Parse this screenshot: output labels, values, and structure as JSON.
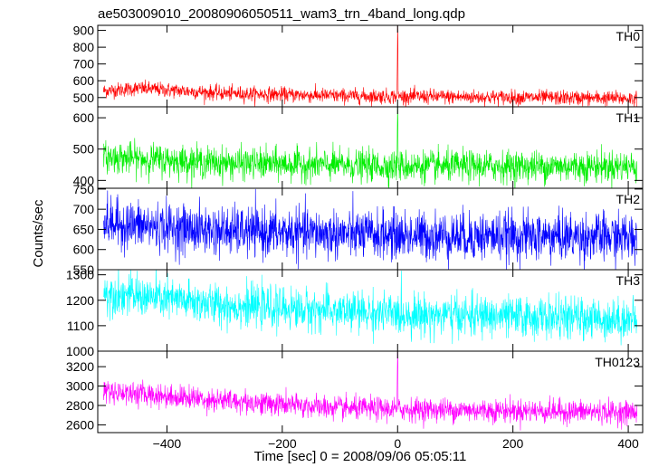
{
  "chart_data": {
    "type": "line",
    "title": "ae503009010_20080906050511_wam3_trn_4band_long.qdp",
    "xlabel": "Time [sec] 0 = 2008/09/06 05:05:11",
    "ylabel": "Counts/sec",
    "xlim": [
      -520,
      425
    ],
    "xticks": [
      -400,
      -200,
      0,
      200,
      400
    ],
    "panels": [
      {
        "name": "TH0",
        "color": "#ff0000",
        "ylim": [
          445,
          930
        ],
        "yticks": [
          500,
          600,
          700,
          800,
          900
        ],
        "trend": [
          [
            -510,
            540
          ],
          [
            -450,
            555
          ],
          [
            -300,
            525
          ],
          [
            -100,
            510
          ],
          [
            400,
            495
          ]
        ],
        "noise": 22,
        "spike": {
          "x": 0,
          "values": [
            700,
            930,
            850
          ]
        }
      },
      {
        "name": "TH1",
        "color": "#00ee00",
        "ylim": [
          375,
          635
        ],
        "yticks": [
          400,
          500,
          600
        ],
        "trend": [
          [
            -510,
            475
          ],
          [
            -300,
            455
          ],
          [
            0,
            445
          ],
          [
            400,
            445
          ]
        ],
        "noise": 25,
        "spike": {
          "x": 0,
          "values": [
            560,
            635,
            590
          ]
        }
      },
      {
        "name": "TH2",
        "color": "#0000ff",
        "ylim": [
          550,
          752
        ],
        "yticks": [
          550,
          600,
          650,
          700,
          750
        ],
        "trend": [
          [
            -510,
            665
          ],
          [
            -300,
            645
          ],
          [
            0,
            635
          ],
          [
            400,
            630
          ]
        ],
        "noise": 30
      },
      {
        "name": "TH3",
        "color": "#00ffff",
        "ylim": [
          1000,
          1320
        ],
        "yticks": [
          1000,
          1100,
          1200,
          1300
        ],
        "trend": [
          [
            -510,
            1230
          ],
          [
            -300,
            1180
          ],
          [
            0,
            1145
          ],
          [
            400,
            1125
          ]
        ],
        "noise": 40
      },
      {
        "name": "TH0123",
        "color": "#ff00ff",
        "ylim": [
          2520,
          3360
        ],
        "yticks": [
          2600,
          2800,
          3000,
          3200
        ],
        "trend": [
          [
            -510,
            2950
          ],
          [
            -300,
            2850
          ],
          [
            -100,
            2770
          ],
          [
            400,
            2730
          ]
        ],
        "noise": 60,
        "spike": {
          "x": 0,
          "values": [
            3150,
            3360,
            3250
          ]
        }
      }
    ]
  }
}
